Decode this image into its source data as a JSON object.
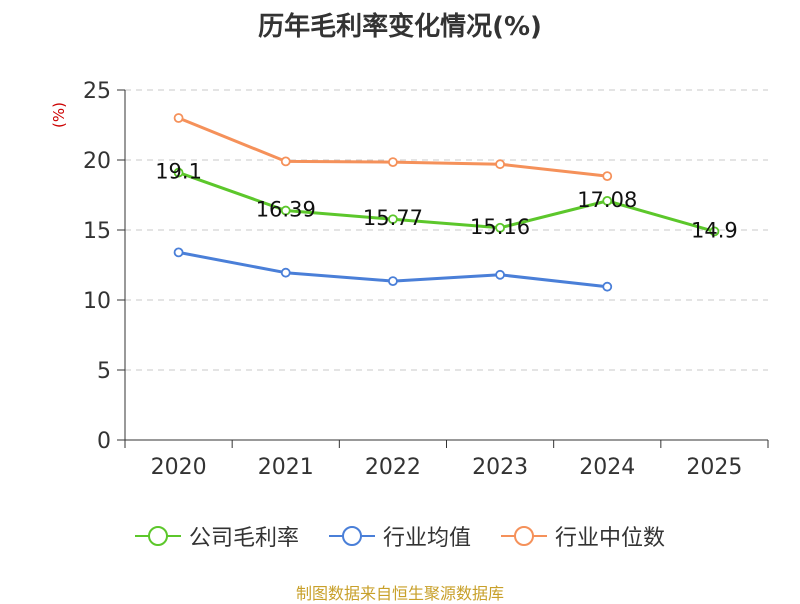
{
  "chart_data": {
    "type": "line",
    "title": "历年毛利率变化情况(%)",
    "ylabel": "(%)",
    "categories": [
      "2020",
      "2021",
      "2022",
      "2023",
      "2024",
      "2025"
    ],
    "ylim": [
      0,
      25
    ],
    "yticks": [
      0,
      5,
      10,
      15,
      20,
      25
    ],
    "grid": true,
    "legend_position": "bottom",
    "series": [
      {
        "name": "公司毛利率",
        "color": "#5cc72b",
        "values": [
          19.1,
          16.39,
          15.77,
          15.16,
          17.08,
          14.9
        ],
        "labels": [
          "19.1",
          "16.39",
          "15.77",
          "15.16",
          "17.08",
          "14.9"
        ]
      },
      {
        "name": "行业均值",
        "color": "#4a7fd8",
        "values": [
          13.4,
          11.95,
          11.35,
          11.8,
          10.95,
          null
        ]
      },
      {
        "name": "行业中位数",
        "color": "#f5915a",
        "values": [
          23.0,
          19.9,
          19.85,
          19.7,
          18.85,
          null
        ]
      }
    ]
  },
  "source": "制图数据来自恒生聚源数据库"
}
